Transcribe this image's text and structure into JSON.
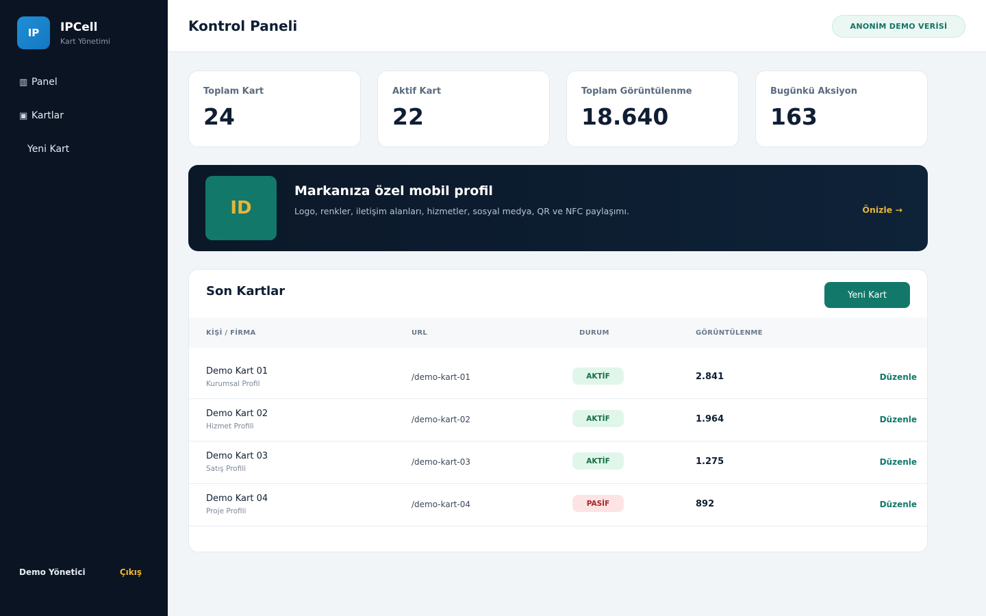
{
  "sidebar": {
    "brand": {
      "logo_text": "IP",
      "name": "IPCell",
      "subtitle": "Kart Yönetimi"
    },
    "items": [
      {
        "icon": "chart-bar-icon",
        "glyph": "▥",
        "label": "Panel"
      },
      {
        "icon": "card-icon",
        "glyph": "▣",
        "label": "Kartlar"
      },
      {
        "label": "Yeni Kart"
      }
    ],
    "user": "Demo Yönetici",
    "logout": "Çıkış"
  },
  "header": {
    "title": "Kontrol Paneli",
    "badge": "ANONİM DEMO VERİSİ"
  },
  "stats": [
    {
      "label": "Toplam Kart",
      "value": "24"
    },
    {
      "label": "Aktif Kart",
      "value": "22"
    },
    {
      "label": "Toplam Görüntülenme",
      "value": "18.640"
    },
    {
      "label": "Bugünkü Aksiyon",
      "value": "163"
    }
  ],
  "banner": {
    "logo_text": "ID",
    "title": "Markanıza özel mobil profil",
    "description": "Logo, renkler, iletişim alanları, hizmetler, sosyal medya, QR ve NFC paylaşımı.",
    "link": "Önizle →"
  },
  "recent": {
    "title": "Son Kartlar",
    "new_button": "Yeni Kart",
    "columns": [
      "KİŞİ / FİRMA",
      "URL",
      "DURUM",
      "GÖRÜNTÜLENME"
    ],
    "rows": [
      {
        "name": "Demo Kart 01",
        "type": "Kurumsal Profil",
        "url": "/demo-kart-01",
        "status": "AKTİF",
        "views": "2.841",
        "action": "Düzenle"
      },
      {
        "name": "Demo Kart 02",
        "type": "Hizmet Profili",
        "url": "/demo-kart-02",
        "status": "AKTİF",
        "views": "1.964",
        "action": "Düzenle"
      },
      {
        "name": "Demo Kart 03",
        "type": "Satış Profili",
        "url": "/demo-kart-03",
        "status": "AKTİF",
        "views": "1.275",
        "action": "Düzenle"
      },
      {
        "name": "Demo Kart 04",
        "type": "Proje Profili",
        "url": "/demo-kart-04",
        "status": "PASİF",
        "views": "892",
        "action": "Düzenle"
      }
    ]
  },
  "colors": {
    "sidebar_bg": "#0b1423",
    "accent": "#12786a",
    "gold": "#e8b43a",
    "brand_blue": "#1e8fd6",
    "active_badge": "#e1f6ea",
    "passive_badge": "#fde4e4"
  }
}
